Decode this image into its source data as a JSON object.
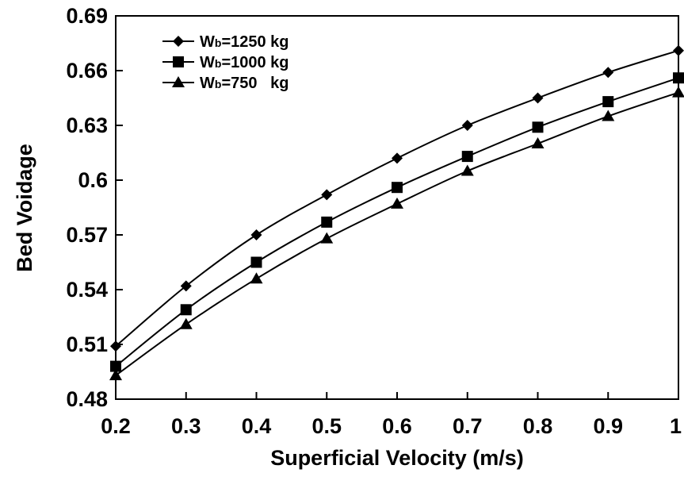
{
  "chart_data": {
    "type": "line",
    "xlabel": "Superficial Velocity (m/s)",
    "ylabel": "Bed Voidage",
    "x": [
      0.2,
      0.3,
      0.4,
      0.5,
      0.6,
      0.7,
      0.8,
      0.9,
      1.0
    ],
    "xlim": [
      0.2,
      1.0
    ],
    "ylim": [
      0.48,
      0.69
    ],
    "x_ticks": [
      "0.2",
      "0.3",
      "0.4",
      "0.5",
      "0.6",
      "0.7",
      "0.8",
      "0.9",
      "1"
    ],
    "y_ticks": [
      "0.48",
      "0.51",
      "0.54",
      "0.57",
      "0.6",
      "0.63",
      "0.66",
      "0.69"
    ],
    "grid": false,
    "legend_position": "top-left",
    "series": [
      {
        "name_main": "W",
        "name_sub": "b",
        "name_rest": "=1250 kg",
        "marker": "diamond",
        "values": [
          0.509,
          0.542,
          0.57,
          0.592,
          0.612,
          0.63,
          0.645,
          0.659,
          0.671
        ]
      },
      {
        "name_main": "W",
        "name_sub": "b",
        "name_rest": "=1000 kg",
        "marker": "square",
        "values": [
          0.498,
          0.529,
          0.555,
          0.577,
          0.596,
          0.613,
          0.629,
          0.643,
          0.656
        ]
      },
      {
        "name_main": "W",
        "name_sub": "b",
        "name_rest": "=750   kg",
        "marker": "triangle",
        "values": [
          0.493,
          0.521,
          0.546,
          0.568,
          0.587,
          0.605,
          0.62,
          0.635,
          0.648
        ]
      }
    ]
  }
}
